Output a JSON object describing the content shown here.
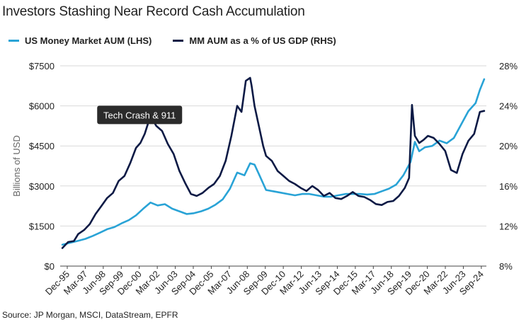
{
  "title": "Investors Stashing Near Record Cash Accumulation",
  "source": "Source: JP Morgan, MSCI, DataStream, EPFR",
  "chart_data": {
    "type": "line",
    "ylabel_left": "Billions of USD",
    "ylabel_right": "",
    "ylim_left": [
      0,
      7500
    ],
    "ylim_right": [
      8,
      28
    ],
    "y_ticks_left": [
      "$0",
      "$1500",
      "$3000",
      "$4500",
      "$6000",
      "$7500"
    ],
    "y_ticks_right": [
      "8%",
      "12%",
      "16%",
      "20%",
      "24%",
      "28%"
    ],
    "x_tick_labels": [
      "Dec-95",
      "Mar-97",
      "Jun-98",
      "Sep-99",
      "Dec-00",
      "Mar-02",
      "Jun-03",
      "Sep-04",
      "Dec-05",
      "Mar-07",
      "Jun-08",
      "Sep-09",
      "Dec-10",
      "Mar-12",
      "Jun-13",
      "Sep-14",
      "Dec-15",
      "Mar-17",
      "Jun-18",
      "Sep-19",
      "Dec-20",
      "Mar-22",
      "Jun-23",
      "Sep-24"
    ],
    "xlim": [
      1995.75,
      2025.25
    ],
    "grid": "horizontal",
    "legend_position": "top-left",
    "annotation": {
      "text": "Tech Crash & 911",
      "x": 2001.25,
      "y_right": 23.1
    },
    "series": [
      {
        "name": "US Money Market AUM (LHS)",
        "axis": "left",
        "color": "#29a3d6",
        "x": [
          1995.9,
          1996.5,
          1997.0,
          1997.5,
          1998.0,
          1998.5,
          1999.0,
          1999.5,
          2000.0,
          2000.5,
          2001.0,
          2001.5,
          2002.0,
          2002.5,
          2003.0,
          2003.5,
          2004.0,
          2004.5,
          2005.0,
          2005.5,
          2006.0,
          2006.5,
          2007.0,
          2007.5,
          2008.0,
          2008.5,
          2008.9,
          2009.2,
          2009.5,
          2010.0,
          2010.5,
          2011.0,
          2011.5,
          2012.0,
          2012.5,
          2013.0,
          2013.5,
          2014.0,
          2014.5,
          2015.0,
          2015.5,
          2016.0,
          2016.5,
          2017.0,
          2017.5,
          2018.0,
          2018.5,
          2019.0,
          2019.5,
          2020.0,
          2020.3,
          2020.6,
          2021.0,
          2021.5,
          2022.0,
          2022.5,
          2023.0,
          2023.5,
          2024.0,
          2024.5,
          2024.8,
          2025.1
        ],
        "y": [
          800,
          880,
          950,
          1020,
          1130,
          1250,
          1380,
          1460,
          1600,
          1720,
          1900,
          2150,
          2380,
          2270,
          2320,
          2150,
          2050,
          1950,
          1980,
          2050,
          2150,
          2300,
          2500,
          2900,
          3500,
          3400,
          3850,
          3800,
          3450,
          2850,
          2800,
          2750,
          2700,
          2650,
          2700,
          2700,
          2650,
          2600,
          2600,
          2650,
          2700,
          2700,
          2700,
          2680,
          2700,
          2800,
          2900,
          3050,
          3400,
          3900,
          4650,
          4300,
          4450,
          4500,
          4700,
          4600,
          4800,
          5300,
          5800,
          6100,
          6600,
          7000
        ]
      },
      {
        "name": "MM AUM as a % of US GDP (RHS)",
        "axis": "right",
        "color": "#0c1a45",
        "x": [
          1995.9,
          1996.3,
          1996.7,
          1997.0,
          1997.4,
          1997.8,
          1998.2,
          1998.6,
          1999.0,
          1999.4,
          1999.8,
          2000.2,
          2000.6,
          2001.0,
          2001.3,
          2001.6,
          2002.0,
          2002.4,
          2002.8,
          2003.2,
          2003.6,
          2004.0,
          2004.4,
          2004.8,
          2005.2,
          2005.6,
          2006.0,
          2006.4,
          2006.8,
          2007.2,
          2007.6,
          2008.0,
          2008.3,
          2008.6,
          2008.9,
          2009.0,
          2009.2,
          2009.5,
          2009.8,
          2010.0,
          2010.4,
          2010.8,
          2011.2,
          2011.6,
          2012.0,
          2012.4,
          2012.8,
          2013.2,
          2013.6,
          2014.0,
          2014.4,
          2014.8,
          2015.2,
          2015.6,
          2016.0,
          2016.4,
          2016.8,
          2017.2,
          2017.6,
          2018.0,
          2018.4,
          2018.8,
          2019.2,
          2019.6,
          2019.9,
          2020.1,
          2020.3,
          2020.6,
          2020.9,
          2021.2,
          2021.6,
          2022.0,
          2022.4,
          2022.8,
          2023.2,
          2023.6,
          2024.0,
          2024.4,
          2024.8,
          2025.1
        ],
        "y": [
          9.8,
          10.4,
          10.5,
          11.2,
          11.6,
          12.2,
          13.2,
          14.0,
          14.8,
          15.3,
          16.5,
          17.0,
          18.3,
          19.8,
          20.3,
          21.2,
          23.0,
          22.0,
          21.5,
          20.2,
          19.2,
          17.5,
          16.3,
          15.2,
          15.0,
          15.3,
          15.8,
          16.2,
          17.0,
          18.5,
          21.0,
          24.0,
          23.4,
          26.5,
          26.8,
          26.0,
          24.0,
          22.0,
          20.0,
          19.0,
          18.5,
          17.5,
          17.0,
          16.5,
          16.2,
          15.8,
          15.5,
          16.0,
          15.6,
          15.0,
          15.3,
          14.8,
          14.7,
          15.0,
          15.4,
          15.0,
          14.9,
          14.6,
          14.2,
          14.1,
          14.4,
          14.5,
          15.0,
          15.8,
          16.8,
          24.1,
          21.0,
          20.3,
          20.6,
          21.0,
          20.8,
          20.2,
          19.5,
          17.6,
          17.3,
          19.2,
          20.5,
          21.2,
          23.4,
          23.5
        ]
      }
    ]
  }
}
